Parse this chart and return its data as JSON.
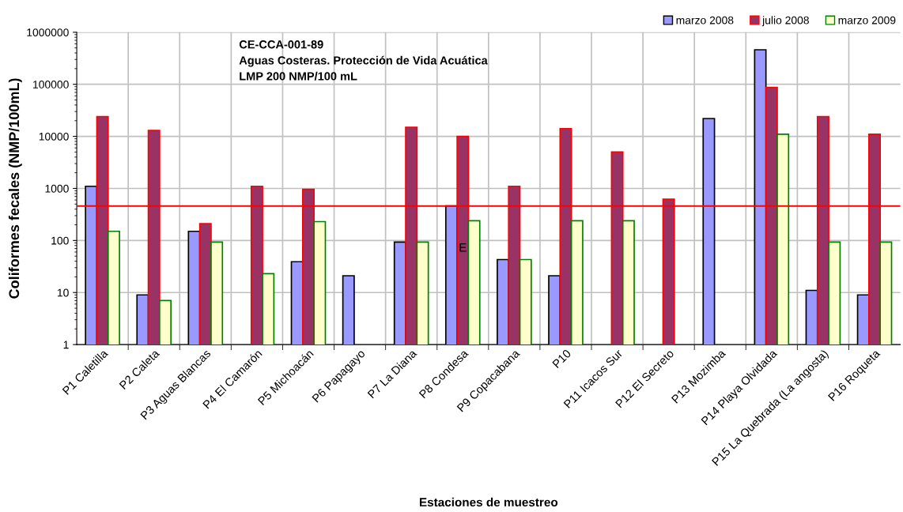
{
  "chart_data": {
    "type": "bar",
    "log": "y",
    "xlabel": "Estaciones de muestreo",
    "ylabel": "Coliformes fecales (NMP/100mL)",
    "categories": [
      "P1 Caletilla",
      "P2 Caleta",
      "P3 Aguas Blancas",
      "P4 El Camarón",
      "P5 Michoacán",
      "P6 Papagayo",
      "P7 La Diana",
      "P8 Condesa",
      "P9 Copacabana",
      "P10",
      "P11 Icacos Sur",
      "P12 El Secreto",
      "P13 Mozimba",
      "P14 Playa Olvidada",
      "P15 La Quebrada (La angosta)",
      "P16 Roqueta"
    ],
    "series": [
      {
        "name": "marzo 2008",
        "color": "#9999ff",
        "values": [
          1100,
          9,
          150,
          null,
          39,
          21,
          93,
          460,
          43,
          21,
          null,
          null,
          22000,
          460000,
          11,
          9
        ]
      },
      {
        "name": "julio 2008",
        "color": "#993366",
        "values": [
          24000,
          13000,
          210,
          1100,
          960,
          null,
          15000,
          10000,
          1100,
          14000,
          5000,
          620,
          null,
          87000,
          24000,
          11000
        ]
      },
      {
        "name": "marzo 2009",
        "color": "#ffffcc",
        "values": [
          150,
          7,
          93,
          23,
          230,
          null,
          93,
          240,
          43,
          240,
          240,
          null,
          null,
          11000,
          93,
          93
        ]
      }
    ],
    "ylim": [
      1,
      1000000
    ],
    "yticks": [
      1,
      10,
      100,
      1000,
      10000,
      100000,
      1000000
    ],
    "grid": true,
    "legend": "top right",
    "ref_lines": [
      {
        "axis": "y",
        "value": 460,
        "color": "#ff0000"
      }
    ],
    "annotations": [
      "CE-CCA-001-89\nAguas Costeras. Protección de Vida Acuática\nLMP 200 NMP/100 mL",
      {
        "text": "E",
        "x": "P8 Condesa",
        "y": 70
      }
    ]
  }
}
